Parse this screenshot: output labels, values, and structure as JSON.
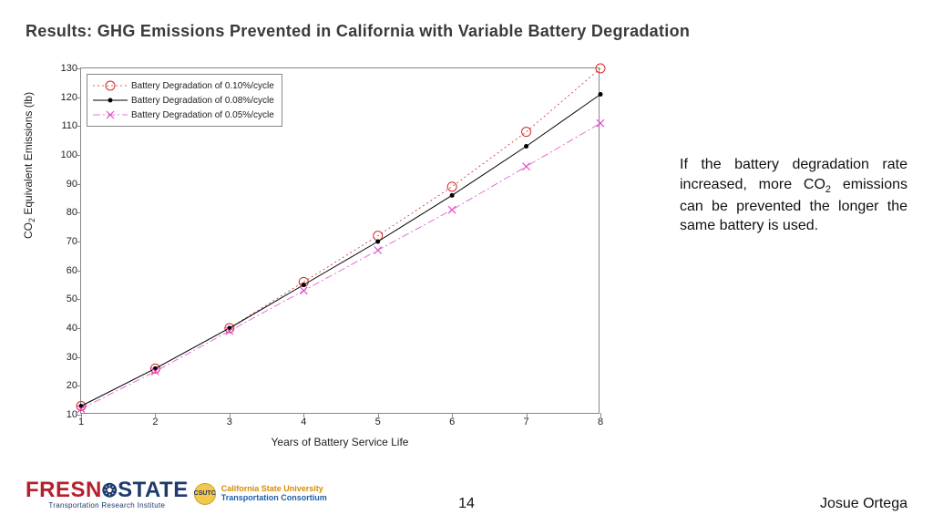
{
  "title": "Results: GHG Emissions Prevented in California with Variable Battery Degradation",
  "sidebar_html": "If the battery degradation rate increased, more CO<sub>2</sub> emissions can be prevented the longer the same battery is used.",
  "chart": {
    "type": "line",
    "xlabel": "Years of Battery Service Life",
    "ylabel_html": "CO<sub>2</sub> Equivalent Emissions (lb)",
    "xlim": [
      1,
      8
    ],
    "ylim": [
      10,
      130
    ],
    "xticks": [
      1,
      2,
      3,
      4,
      5,
      6,
      7,
      8
    ],
    "yticks": [
      10,
      20,
      30,
      40,
      50,
      60,
      70,
      80,
      90,
      100,
      110,
      120,
      130
    ],
    "tick_fontsize": 11,
    "label_fontsize": 12,
    "background_color": "#ffffff",
    "axis_color": "#888888",
    "legend_pos": "top-left",
    "series": [
      {
        "name": "Battery Degradation of 0.10%/cycle",
        "color": "#d62728",
        "dash": "2,3",
        "marker": "circle-open",
        "marker_size": 5,
        "linewidth": 0.8,
        "x": [
          1,
          2,
          3,
          4,
          5,
          6,
          7,
          8
        ],
        "y": [
          13,
          26,
          40,
          56,
          72,
          89,
          108,
          130
        ]
      },
      {
        "name": "Battery Degradation of 0.08%/cycle",
        "color": "#000000",
        "dash": "none",
        "marker": "dot",
        "marker_size": 2.5,
        "linewidth": 1.0,
        "x": [
          1,
          2,
          3,
          4,
          5,
          6,
          7,
          8
        ],
        "y": [
          13,
          26,
          40,
          55,
          70,
          86,
          103,
          121
        ]
      },
      {
        "name": "Battery Degradation of 0.05%/cycle",
        "color": "#e24ecb",
        "dash": "8,3,2,3",
        "marker": "x",
        "marker_size": 4,
        "linewidth": 0.8,
        "x": [
          1,
          2,
          3,
          4,
          5,
          6,
          7,
          8
        ],
        "y": [
          12,
          25,
          39,
          53,
          67,
          81,
          96,
          111
        ]
      }
    ]
  },
  "footer": {
    "logo_fresno": "FRESN",
    "logo_state": "STATE",
    "tri": "Transportation Research Institute",
    "csutc_badge": "CSUTC",
    "csutc_l1": "California State University",
    "csutc_l2": "Transportation Consortium",
    "page": "14",
    "author": "Josue Ortega"
  }
}
